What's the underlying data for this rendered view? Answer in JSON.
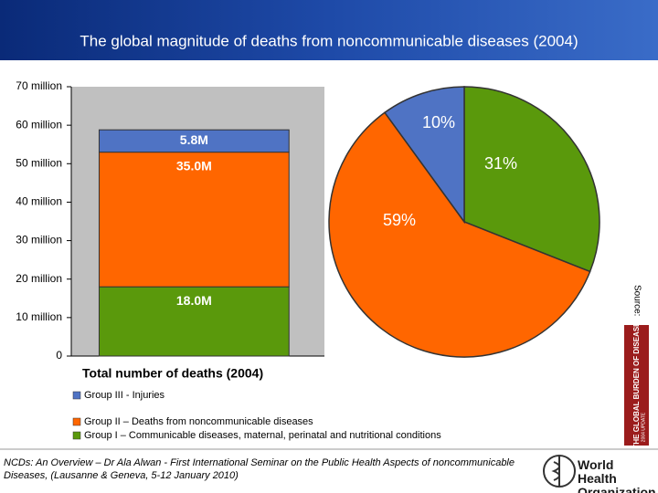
{
  "title": "The global magnitude of deaths from noncommunicable diseases (2004)",
  "chart_data": [
    {
      "type": "bar",
      "stacked": true,
      "title": "Total number of deaths (2004)",
      "categories": [
        null
      ],
      "series": [
        {
          "name": "Group III - Injuries",
          "color": "#4f73c4",
          "values": [
            5.8
          ],
          "value_labels": [
            "5.8M"
          ]
        },
        {
          "name": "Group II – Deaths from noncommunicable diseases",
          "color": "#ff6600",
          "values": [
            35.0
          ],
          "value_labels": [
            "35.0M"
          ]
        },
        {
          "name": "Group I – Communicable diseases, maternal, perinatal and nutritional conditions",
          "color": "#5a990c",
          "values": [
            18.0
          ],
          "value_labels": [
            "18.0M"
          ]
        }
      ],
      "ylim": [
        0,
        70
      ],
      "yticks": [
        0,
        {
          "value": 10,
          "label": "10 million"
        },
        {
          "value": 20,
          "label": "20 million"
        },
        {
          "value": 30,
          "label": "30 million"
        },
        {
          "value": 40,
          "label": "40 million"
        },
        {
          "value": 50,
          "label": "50 million"
        },
        {
          "value": 60,
          "label": "60 million"
        },
        {
          "value": 70,
          "label": "70 million"
        }
      ]
    },
    {
      "type": "pie",
      "values": [
        31,
        59,
        10
      ],
      "value_labels": [
        "31%",
        "59%",
        "10%"
      ],
      "colors": [
        "#5a990c",
        "#ff6600",
        "#4f73c4"
      ]
    }
  ],
  "source_label": "Source:",
  "book_title": "THE GLOBAL BURDEN OF DISEASE",
  "book_edition": "2004 UPDATE",
  "footnote": "NCDs: An Overview – Dr Ala Alwan - First International Seminar on the Public Health Aspects of noncommunicable Diseases, (Lausanne & Geneva, 5-12 January 2010)",
  "organization": "World Health Organization"
}
